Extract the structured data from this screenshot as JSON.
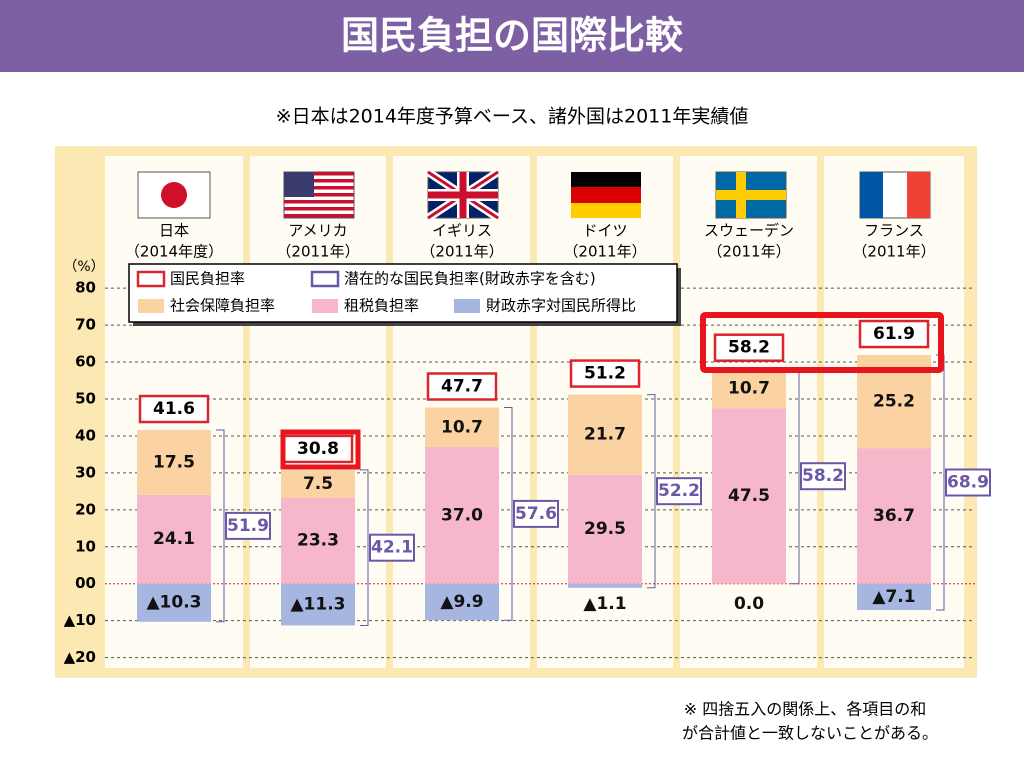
{
  "chart_data": {
    "type": "stacked-bar",
    "title": "国民負担の国際比較",
    "subtitle": "※日本は2014年度予算ベース、諸外国は2011年実績値",
    "y_unit": "（%）",
    "categories": [
      "日本",
      "アメリカ",
      "イギリス",
      "ドイツ",
      "スウェーデン",
      "フランス"
    ],
    "category_notes": [
      "（2014年度）",
      "（2011年）",
      "（2011年）",
      "（2011年）",
      "（2011年）",
      "（2011年）"
    ],
    "series": [
      {
        "name": "社会保障負担率",
        "color": "#fbd3a3",
        "values": [
          17.5,
          7.5,
          10.7,
          21.7,
          10.7,
          25.2
        ],
        "value_labels": [
          "17.5",
          "7.5",
          "10.7",
          "21.7",
          "10.7",
          "25.2"
        ]
      },
      {
        "name": "租税負担率",
        "color": "#f5b7c9",
        "values": [
          24.1,
          23.3,
          37.0,
          29.5,
          47.5,
          36.7
        ],
        "value_labels": [
          "24.1",
          "23.3",
          "37.0",
          "29.5",
          "47.5",
          "36.7"
        ]
      },
      {
        "name": "財政赤字対国民所得比",
        "color": "#a7b6e0",
        "values": [
          -10.3,
          -11.3,
          -9.9,
          -1.1,
          0.0,
          -7.1
        ],
        "value_labels": [
          "▲10.3",
          "▲11.3",
          "▲9.9",
          "▲1.1",
          "0.0",
          "▲7.1"
        ]
      }
    ],
    "totals": {
      "name": "国民負担率",
      "color": "#d9262e",
      "values": [
        41.6,
        30.8,
        47.7,
        51.2,
        58.2,
        61.9
      ]
    },
    "potential": {
      "name": "潜在的な国民負担率(財政赤字を含む)",
      "color": "#6a58a6",
      "values": [
        51.9,
        42.1,
        57.6,
        52.2,
        58.2,
        68.9
      ]
    },
    "ylim": [
      -22,
      86
    ],
    "yticks": [
      80,
      70,
      60,
      50,
      40,
      30,
      20,
      10,
      {
        "value": 0,
        "label": "00"
      },
      {
        "value": -10,
        "label": "▲10"
      },
      {
        "value": -20,
        "label": "▲20"
      }
    ],
    "grid": true,
    "footnote": [
      "※  四捨五入の関係上、各項目の和",
      "が合計値と一致しないことがある。"
    ]
  }
}
